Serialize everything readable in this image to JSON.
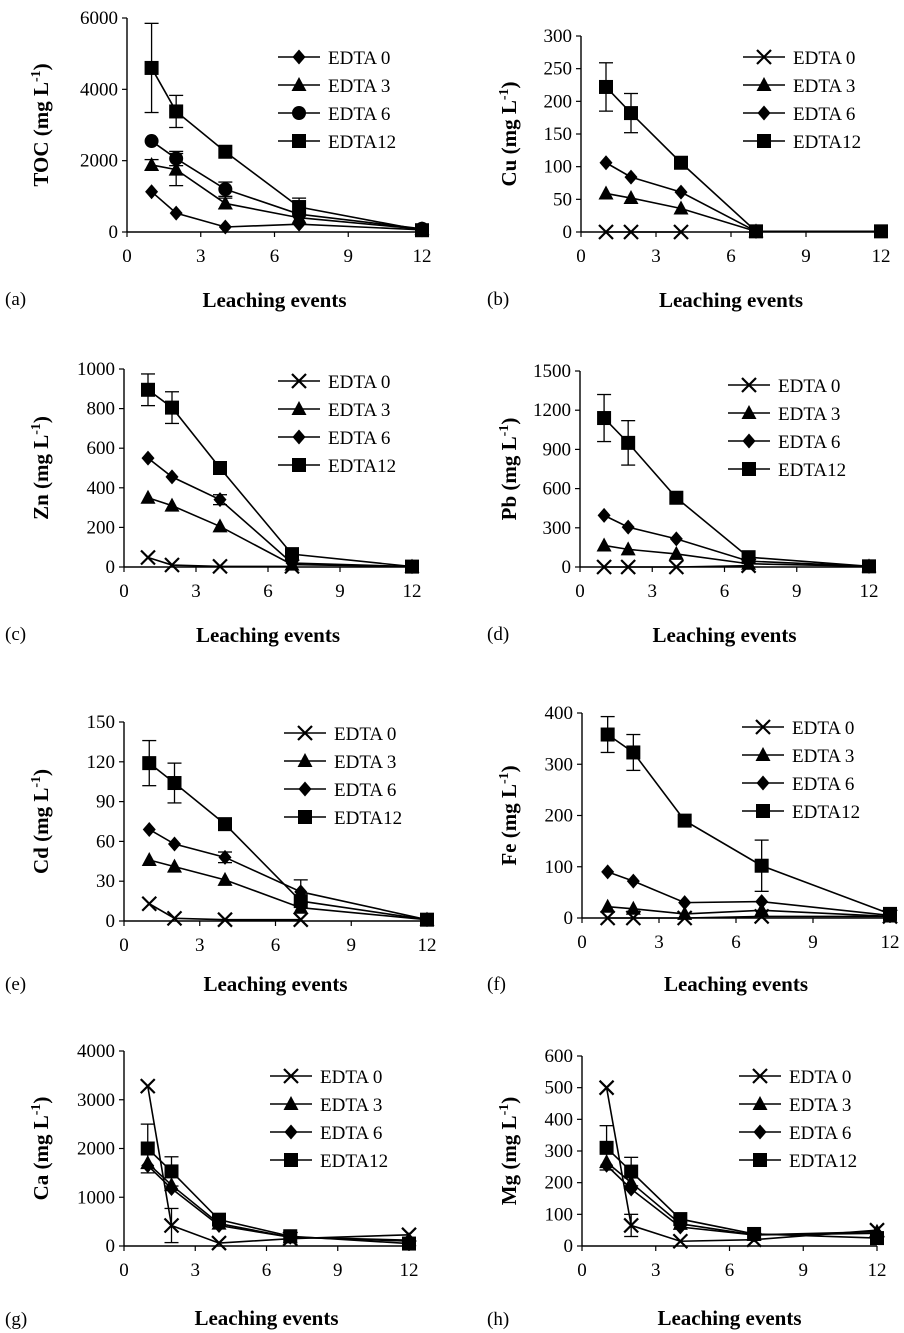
{
  "chart_data": [
    {
      "panel": "(a)",
      "type": "line",
      "xlabel": "Leaching events",
      "ylabel": "TOC (mg L-1)",
      "ylabel_main": "TOC (mg L",
      "ylabel_sup": "-1",
      "ylabel_close": ")",
      "x_ticks": [
        "0",
        "3",
        "6",
        "9",
        "12"
      ],
      "y_ticks": [
        "0",
        "2000",
        "4000",
        "6000"
      ],
      "xlim": [
        0,
        12
      ],
      "ylim": [
        0,
        6000
      ],
      "series": [
        {
          "name": "EDTA 0",
          "marker": "diamond",
          "x": [
            1,
            2,
            4,
            7,
            12
          ],
          "y": [
            1130,
            530,
            140,
            220,
            60
          ],
          "err": [
            0,
            0,
            0,
            0,
            0
          ]
        },
        {
          "name": "EDTA 3",
          "marker": "triangle",
          "x": [
            1,
            2,
            4,
            7,
            12
          ],
          "y": [
            1880,
            1750,
            800,
            400,
            80
          ],
          "err": [
            150,
            450,
            150,
            0,
            0
          ]
        },
        {
          "name": "EDTA 6",
          "marker": "circle",
          "x": [
            1,
            2,
            4,
            7,
            12
          ],
          "y": [
            2550,
            2060,
            1200,
            500,
            90
          ],
          "err": [
            0,
            200,
            200,
            0,
            0
          ]
        },
        {
          "name": "EDTA12",
          "marker": "square",
          "x": [
            1,
            2,
            4,
            7,
            12
          ],
          "y": [
            4600,
            3380,
            2250,
            700,
            50
          ],
          "err": [
            1250,
            450,
            0,
            250,
            0
          ]
        }
      ]
    },
    {
      "panel": "(b)",
      "type": "line",
      "xlabel": "Leaching events",
      "ylabel": "Cu (mg L-1)",
      "ylabel_main": "Cu (mg L",
      "ylabel_sup": "-1",
      "ylabel_close": ")",
      "x_ticks": [
        "0",
        "3",
        "6",
        "9",
        "12"
      ],
      "y_ticks": [
        "0",
        "50",
        "100",
        "150",
        "200",
        "250",
        "300"
      ],
      "xlim": [
        0,
        12
      ],
      "ylim": [
        0,
        300
      ],
      "series": [
        {
          "name": "EDTA 0",
          "marker": "x",
          "x": [
            1,
            2,
            4
          ],
          "y": [
            0,
            0,
            0
          ],
          "err": [
            0,
            0,
            0
          ]
        },
        {
          "name": "EDTA 3",
          "marker": "triangle",
          "x": [
            1,
            2,
            4,
            7
          ],
          "y": [
            59,
            52,
            36,
            1
          ],
          "err": [
            0,
            0,
            0,
            0
          ]
        },
        {
          "name": "EDTA 6",
          "marker": "diamond",
          "x": [
            1,
            2,
            4,
            7
          ],
          "y": [
            106,
            84,
            61,
            1
          ],
          "err": [
            0,
            0,
            0,
            0
          ]
        },
        {
          "name": "EDTA12",
          "marker": "square",
          "x": [
            1,
            2,
            4,
            7,
            12
          ],
          "y": [
            222,
            182,
            106,
            1,
            1
          ],
          "err": [
            37,
            30,
            0,
            0,
            0
          ]
        }
      ]
    },
    {
      "panel": "(c)",
      "type": "line",
      "xlabel": "Leaching events",
      "ylabel": "Zn (mg L-1)",
      "ylabel_main": "Zn (mg L",
      "ylabel_sup": "-1",
      "ylabel_close": ")",
      "x_ticks": [
        "0",
        "3",
        "6",
        "9",
        "12"
      ],
      "y_ticks": [
        "0",
        "200",
        "400",
        "600",
        "800",
        "1000"
      ],
      "xlim": [
        0,
        12
      ],
      "ylim": [
        0,
        1000
      ],
      "series": [
        {
          "name": "EDTA 0",
          "marker": "x",
          "x": [
            1,
            2,
            4,
            7
          ],
          "y": [
            48,
            10,
            3,
            3
          ],
          "err": [
            0,
            0,
            0,
            0
          ]
        },
        {
          "name": "EDTA 3",
          "marker": "triangle",
          "x": [
            1,
            2,
            4,
            7,
            12
          ],
          "y": [
            350,
            310,
            205,
            12,
            2
          ],
          "err": [
            0,
            0,
            0,
            0,
            0
          ]
        },
        {
          "name": "EDTA 6",
          "marker": "diamond",
          "x": [
            1,
            2,
            4,
            7,
            12
          ],
          "y": [
            550,
            455,
            340,
            20,
            2
          ],
          "err": [
            0,
            0,
            25,
            0,
            0
          ]
        },
        {
          "name": "EDTA12",
          "marker": "square",
          "x": [
            1,
            2,
            4,
            7,
            12
          ],
          "y": [
            895,
            805,
            500,
            65,
            2
          ],
          "err": [
            80,
            80,
            30,
            0,
            0
          ]
        }
      ]
    },
    {
      "panel": "(d)",
      "type": "line",
      "xlabel": "Leaching events",
      "ylabel": "Pb (mg L-1)",
      "ylabel_main": "Pb (mg L",
      "ylabel_sup": "-1",
      "ylabel_close": ")",
      "x_ticks": [
        "0",
        "3",
        "6",
        "9",
        "12"
      ],
      "y_ticks": [
        "0",
        "300",
        "600",
        "900",
        "1200",
        "1500"
      ],
      "xlim": [
        0,
        12
      ],
      "ylim": [
        0,
        1500
      ],
      "series": [
        {
          "name": "EDTA 0",
          "marker": "x",
          "x": [
            1,
            2,
            4,
            7
          ],
          "y": [
            0,
            0,
            0,
            10
          ],
          "err": [
            0,
            0,
            0,
            0
          ]
        },
        {
          "name": "EDTA 3",
          "marker": "triangle",
          "x": [
            1,
            2,
            4,
            7,
            12
          ],
          "y": [
            165,
            135,
            100,
            25,
            5
          ],
          "err": [
            0,
            0,
            0,
            0,
            0
          ]
        },
        {
          "name": "EDTA 6",
          "marker": "diamond",
          "x": [
            1,
            2,
            4,
            7,
            12
          ],
          "y": [
            395,
            305,
            215,
            45,
            5
          ],
          "err": [
            0,
            0,
            0,
            0,
            0
          ]
        },
        {
          "name": "EDTA12",
          "marker": "square",
          "x": [
            1,
            2,
            4,
            7,
            12
          ],
          "y": [
            1140,
            950,
            530,
            75,
            5
          ],
          "err": [
            180,
            170,
            0,
            0,
            0
          ]
        }
      ]
    },
    {
      "panel": "(e)",
      "type": "line",
      "xlabel": "Leaching events",
      "ylabel": "Cd (mg L-1)",
      "ylabel_main": "Cd (mg L",
      "ylabel_sup": "-1",
      "ylabel_close": ")",
      "x_ticks": [
        "0",
        "3",
        "6",
        "9",
        "12"
      ],
      "y_ticks": [
        "0",
        "30",
        "60",
        "90",
        "120",
        "150"
      ],
      "xlim": [
        0,
        12
      ],
      "ylim": [
        0,
        150
      ],
      "series": [
        {
          "name": "EDTA 0",
          "marker": "x",
          "x": [
            1,
            2,
            4,
            7
          ],
          "y": [
            13,
            2,
            1,
            1
          ],
          "err": [
            0,
            0,
            0,
            0
          ]
        },
        {
          "name": "EDTA 3",
          "marker": "triangle",
          "x": [
            1,
            2,
            4,
            7,
            12
          ],
          "y": [
            46,
            41,
            31,
            10,
            1
          ],
          "err": [
            0,
            0,
            0,
            0,
            0
          ]
        },
        {
          "name": "EDTA 6",
          "marker": "diamond",
          "x": [
            1,
            2,
            4,
            7,
            12
          ],
          "y": [
            69,
            58,
            48,
            22,
            1
          ],
          "err": [
            0,
            0,
            4,
            9,
            0
          ]
        },
        {
          "name": "EDTA12",
          "marker": "square",
          "x": [
            1,
            2,
            4,
            7,
            12
          ],
          "y": [
            119,
            104,
            73,
            15,
            1
          ],
          "err": [
            17,
            15,
            0,
            0,
            0
          ]
        }
      ]
    },
    {
      "panel": "(f)",
      "type": "line",
      "xlabel": "Leaching events",
      "ylabel": "Fe (mg L-1)",
      "ylabel_main": "Fe (mg L",
      "ylabel_sup": "-1",
      "ylabel_close": ")",
      "x_ticks": [
        "0",
        "3",
        "6",
        "9",
        "12"
      ],
      "y_ticks": [
        "0",
        "100",
        "200",
        "300",
        "400"
      ],
      "xlim": [
        0,
        12
      ],
      "ylim": [
        0,
        400
      ],
      "series": [
        {
          "name": "EDTA 0",
          "marker": "x",
          "x": [
            1,
            2,
            4,
            7,
            12
          ],
          "y": [
            0,
            0,
            0,
            3,
            3
          ],
          "err": [
            0,
            0,
            0,
            0,
            0
          ]
        },
        {
          "name": "EDTA 3",
          "marker": "triangle",
          "x": [
            1,
            2,
            4,
            7,
            12
          ],
          "y": [
            22,
            18,
            8,
            15,
            3
          ],
          "err": [
            0,
            0,
            0,
            0,
            0
          ]
        },
        {
          "name": "EDTA 6",
          "marker": "diamond",
          "x": [
            1,
            2,
            4,
            7,
            12
          ],
          "y": [
            90,
            72,
            30,
            32,
            5
          ],
          "err": [
            0,
            0,
            0,
            0,
            0
          ]
        },
        {
          "name": "EDTA12",
          "marker": "square",
          "x": [
            1,
            2,
            4,
            7,
            12
          ],
          "y": [
            358,
            323,
            190,
            102,
            8
          ],
          "err": [
            35,
            35,
            0,
            50,
            0
          ]
        }
      ]
    },
    {
      "panel": "(g)",
      "type": "line",
      "xlabel": "Leaching events",
      "ylabel": "Ca (mg L-1)",
      "ylabel_main": "Ca (mg L",
      "ylabel_sup": "-1",
      "ylabel_close": ")",
      "x_ticks": [
        "0",
        "3",
        "6",
        "9",
        "12"
      ],
      "y_ticks": [
        "0",
        "1000",
        "2000",
        "3000",
        "4000"
      ],
      "xlim": [
        0,
        12
      ],
      "ylim": [
        0,
        4000
      ],
      "series": [
        {
          "name": "EDTA 0",
          "marker": "x",
          "x": [
            1,
            2,
            4,
            7,
            12
          ],
          "y": [
            3280,
            420,
            60,
            150,
            230
          ],
          "err": [
            0,
            350,
            0,
            0,
            0
          ]
        },
        {
          "name": "EDTA 3",
          "marker": "triangle",
          "x": [
            1,
            2,
            4,
            7,
            12
          ],
          "y": [
            1700,
            1250,
            460,
            180,
            120
          ],
          "err": [
            0,
            0,
            0,
            0,
            0
          ]
        },
        {
          "name": "EDTA 6",
          "marker": "diamond",
          "x": [
            1,
            2,
            4,
            7,
            12
          ],
          "y": [
            1650,
            1180,
            420,
            180,
            100
          ],
          "err": [
            0,
            0,
            0,
            0,
            0
          ]
        },
        {
          "name": "EDTA12",
          "marker": "square",
          "x": [
            1,
            2,
            4,
            7,
            12
          ],
          "y": [
            2000,
            1530,
            540,
            200,
            50
          ],
          "err": [
            500,
            300,
            0,
            0,
            0
          ]
        }
      ]
    },
    {
      "panel": "(h)",
      "type": "line",
      "xlabel": "Leaching events",
      "ylabel": "Mg (mg L-1)",
      "ylabel_main": "Mg (mg L",
      "ylabel_sup": "-1",
      "ylabel_close": ")",
      "x_ticks": [
        "0",
        "3",
        "6",
        "9",
        "12"
      ],
      "y_ticks": [
        "0",
        "100",
        "200",
        "300",
        "400",
        "500",
        "600"
      ],
      "xlim": [
        0,
        12
      ],
      "ylim": [
        0,
        600
      ],
      "series": [
        {
          "name": "EDTA 0",
          "marker": "x",
          "x": [
            1,
            2,
            4,
            7,
            12
          ],
          "y": [
            500,
            65,
            15,
            20,
            50
          ],
          "err": [
            0,
            35,
            0,
            0,
            0
          ]
        },
        {
          "name": "EDTA 3",
          "marker": "triangle",
          "x": [
            1,
            2,
            4,
            7,
            12
          ],
          "y": [
            265,
            200,
            70,
            35,
            45
          ],
          "err": [
            0,
            0,
            0,
            0,
            0
          ]
        },
        {
          "name": "EDTA 6",
          "marker": "diamond",
          "x": [
            1,
            2,
            4,
            7,
            12
          ],
          "y": [
            255,
            180,
            60,
            35,
            40
          ],
          "err": [
            0,
            0,
            0,
            0,
            0
          ]
        },
        {
          "name": "EDTA12",
          "marker": "square",
          "x": [
            1,
            2,
            4,
            7,
            12
          ],
          "y": [
            310,
            235,
            85,
            38,
            25
          ],
          "err": [
            70,
            45,
            0,
            0,
            0
          ]
        }
      ]
    }
  ]
}
